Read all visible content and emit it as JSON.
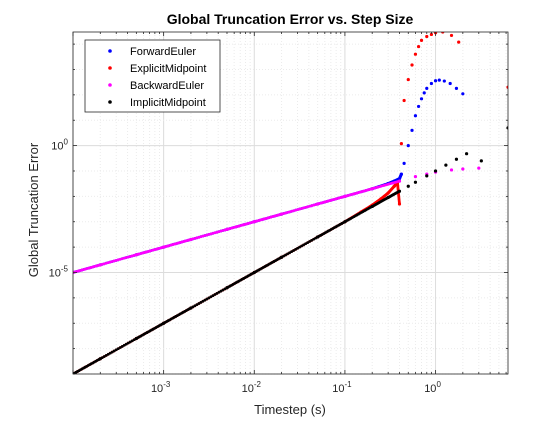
{
  "chart_data": {
    "type": "scatter",
    "title": "Global Truncation Error vs. Step Size",
    "xlabel": "Timestep (s)",
    "ylabel": "Global Truncation Error",
    "xscale": "log",
    "yscale": "log",
    "xlim": [
      0.0001,
      6.3
    ],
    "ylim": [
      1e-09,
      30000.0
    ],
    "grid": true,
    "minor_grid": true,
    "legend_position": "top-left",
    "x_ticks": [
      {
        "value": 0.001,
        "base": "10",
        "exp": "-3"
      },
      {
        "value": 0.01,
        "base": "10",
        "exp": "-2"
      },
      {
        "value": 0.1,
        "base": "10",
        "exp": "-1"
      },
      {
        "value": 1,
        "base": "10",
        "exp": "0"
      }
    ],
    "y_ticks": [
      {
        "value": 1e-05,
        "base": "10",
        "exp": "-5"
      },
      {
        "value": 1,
        "base": "10",
        "exp": "0"
      }
    ],
    "series": [
      {
        "name": "ForwardEuler",
        "color": "#0000ff",
        "x": [
          0.0001,
          0.0002,
          0.0005,
          0.001,
          0.002,
          0.005,
          0.01,
          0.02,
          0.05,
          0.1,
          0.2,
          0.3,
          0.35,
          0.4,
          0.42,
          0.45,
          0.5,
          0.55,
          0.6,
          0.65,
          0.7,
          0.75,
          0.8,
          0.9,
          1.0,
          1.1,
          1.25,
          1.45,
          1.7,
          2.0
        ],
        "y": [
          1e-05,
          2e-05,
          5e-05,
          0.0001,
          0.0002,
          0.0005,
          0.001,
          0.002,
          0.005,
          0.01,
          0.02,
          0.032,
          0.04,
          0.05,
          0.075,
          0.2,
          1.0,
          4.0,
          15,
          35,
          70,
          120,
          180,
          280,
          360,
          380,
          350,
          280,
          180,
          110
        ]
      },
      {
        "name": "ExplicitMidpoint",
        "color": "#ff0000",
        "x": [
          0.0001,
          0.0002,
          0.0005,
          0.001,
          0.002,
          0.005,
          0.01,
          0.02,
          0.05,
          0.1,
          0.15,
          0.2,
          0.25,
          0.3,
          0.35,
          0.38,
          0.4,
          0.42,
          0.45,
          0.5,
          0.55,
          0.6,
          0.65,
          0.7,
          0.8,
          0.9,
          1.0,
          1.2,
          1.5,
          1.8,
          6.3
        ],
        "y": [
          1e-09,
          4e-09,
          2.5e-08,
          1e-07,
          4e-07,
          2.5e-06,
          1e-05,
          4e-05,
          0.00025,
          0.001,
          0.0024,
          0.0045,
          0.008,
          0.0135,
          0.025,
          0.035,
          0.005,
          1.2,
          60,
          400,
          1500,
          4000,
          8000,
          14000,
          20000,
          24000,
          28000,
          30000,
          22000,
          12000,
          200
        ]
      },
      {
        "name": "BackwardEuler",
        "color": "#ff00ff",
        "x": [
          0.0001,
          0.0002,
          0.0005,
          0.001,
          0.002,
          0.005,
          0.01,
          0.02,
          0.05,
          0.1,
          0.2,
          0.4,
          0.6,
          0.8,
          1.0,
          1.5,
          2.0,
          3.0
        ],
        "y": [
          1e-05,
          2e-05,
          5e-05,
          0.0001,
          0.0002,
          0.0005,
          0.001,
          0.002,
          0.005,
          0.01,
          0.02,
          0.04,
          0.06,
          0.075,
          0.09,
          0.11,
          0.12,
          0.13
        ]
      },
      {
        "name": "ImplicitMidpoint",
        "color": "#000000",
        "x": [
          0.0001,
          0.0002,
          0.0005,
          0.001,
          0.002,
          0.005,
          0.01,
          0.02,
          0.05,
          0.1,
          0.2,
          0.3,
          0.4,
          0.5,
          0.6,
          0.8,
          1.0,
          1.3,
          1.7,
          2.2,
          3.2,
          6.3
        ],
        "y": [
          1e-09,
          4e-09,
          2.5e-08,
          1e-07,
          4e-07,
          2.5e-06,
          1e-05,
          4e-05,
          0.00025,
          0.001,
          0.004,
          0.009,
          0.016,
          0.025,
          0.036,
          0.064,
          0.1,
          0.17,
          0.29,
          0.48,
          0.25,
          5
        ]
      }
    ]
  }
}
